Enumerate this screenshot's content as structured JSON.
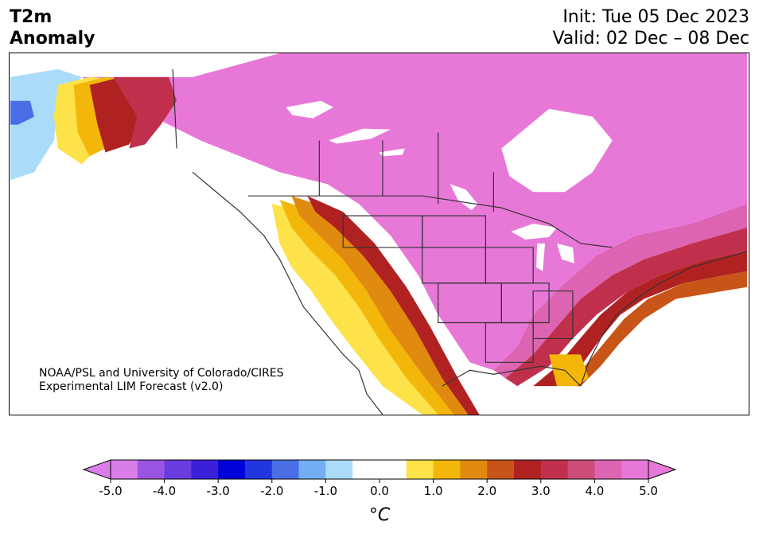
{
  "title": {
    "left_line1": "T2m",
    "left_line2": "Anomaly",
    "init": "Init: Tue 05 Dec 2023",
    "valid": "Valid: 02 Dec – 08 Dec"
  },
  "credit": {
    "line1": "NOAA/PSL and University of Colorado/CIRES",
    "line2": "Experimental LIM Forecast (v2.0)"
  },
  "colorbar": {
    "unit": "°C",
    "ticks": [
      "-5.0",
      "-4.0",
      "-3.0",
      "-2.0",
      "-1.0",
      "0.0",
      "1.0",
      "2.0",
      "3.0",
      "4.0",
      "5.0"
    ],
    "bins": [
      {
        "range": "-5.0 to -4.5",
        "color": "#d97ee8"
      },
      {
        "range": "-4.5 to -4.0",
        "color": "#9a55e0"
      },
      {
        "range": "-4.0 to -3.5",
        "color": "#6a3ce0"
      },
      {
        "range": "-3.5 to -3.0",
        "color": "#3a20d8"
      },
      {
        "range": "-3.0 to -2.5",
        "color": "#0000d8"
      },
      {
        "range": "-2.5 to -2.0",
        "color": "#2236e0"
      },
      {
        "range": "-2.0 to -1.5",
        "color": "#4a6ee6"
      },
      {
        "range": "-1.5 to -1.0",
        "color": "#74aef2"
      },
      {
        "range": "-1.0 to -0.5",
        "color": "#aadcfa"
      },
      {
        "range": "-0.5 to 0.0",
        "color": "#ffffff"
      },
      {
        "range": "0.0 to 0.5",
        "color": "#ffffff"
      },
      {
        "range": "0.5 to 1.0",
        "color": "#fde24a"
      },
      {
        "range": "1.0 to 1.5",
        "color": "#f3b60a"
      },
      {
        "range": "1.5 to 2.0",
        "color": "#e08a10"
      },
      {
        "range": "2.0 to 2.5",
        "color": "#c85518"
      },
      {
        "range": "2.5 to 3.0",
        "color": "#b02222"
      },
      {
        "range": "3.0 to 3.5",
        "color": "#c0304c"
      },
      {
        "range": "3.5 to 4.0",
        "color": "#cc4c78"
      },
      {
        "range": "4.0 to 4.5",
        "color": "#dc64b2"
      },
      {
        "range": "4.5 to 5.0",
        "color": "#e878d8"
      }
    ],
    "extend_low_color": "#d97ee8",
    "extend_high_color": "#e878d8"
  },
  "map_colors": {
    "magenta": "#e878d8",
    "pink": "#dc64b2",
    "rose": "#cc4c78",
    "crimson": "#c0304c",
    "darkred": "#b02222",
    "rust": "#c85518",
    "orange": "#e08a10",
    "amber": "#f3b60a",
    "yellow": "#fde24a",
    "lightblue": "#aadcfa",
    "skyblue": "#74aef2",
    "blue": "#4a6ee6",
    "land_neutral": "#ffffff",
    "borders": "#333333"
  }
}
